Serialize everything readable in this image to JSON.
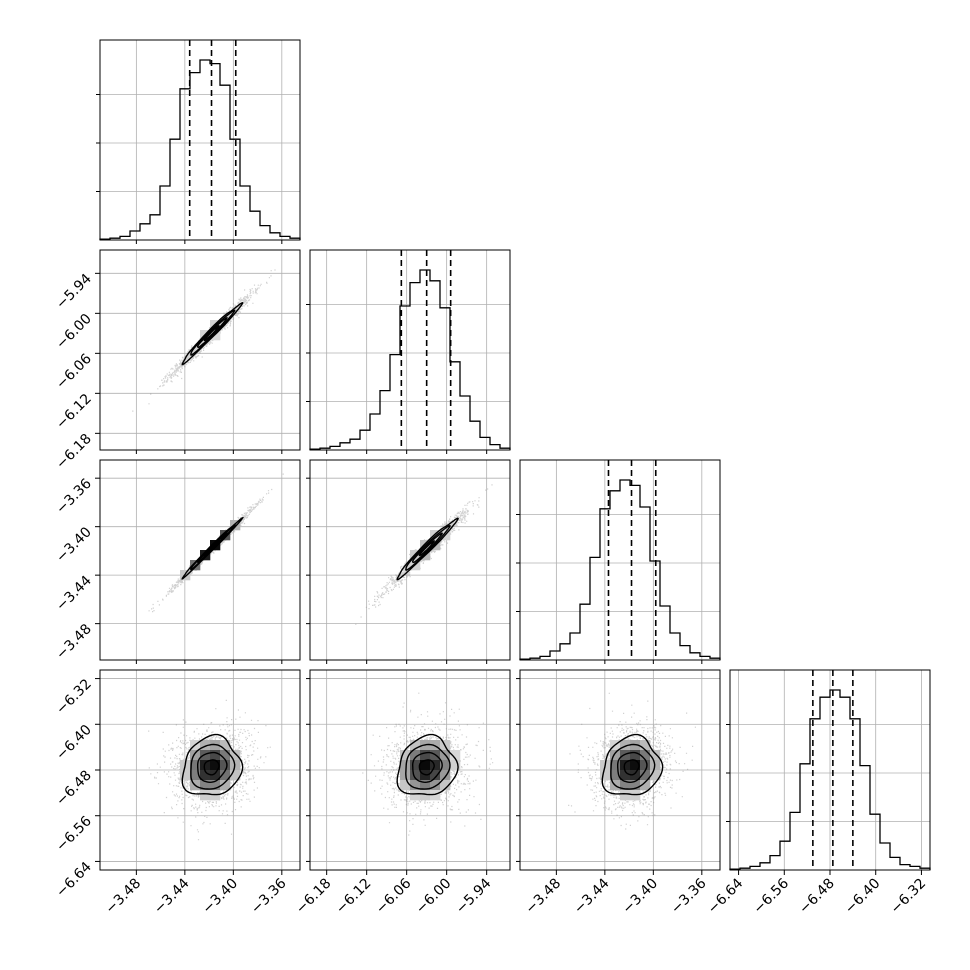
{
  "chart_data": {
    "type": "corner",
    "title": "",
    "grid": true,
    "colors": {
      "line": "#000000",
      "grid": "#b0b0b0",
      "scatter": "#9a9a9a"
    },
    "parameters": [
      {
        "index": 0,
        "range": [
          -3.51,
          -3.345
        ],
        "ticks": [
          -3.48,
          -3.44,
          -3.4,
          -3.36
        ],
        "tick_labels": [
          "−3.48",
          "−3.44",
          "−3.40",
          "−3.36"
        ],
        "quantiles": [
          -3.436,
          -3.418,
          -3.398
        ],
        "histogram": [
          0.5,
          1,
          2,
          5,
          9,
          14,
          30,
          56,
          84,
          93,
          100,
          98,
          86,
          56,
          30,
          16,
          8,
          4,
          2,
          1
        ]
      },
      {
        "index": 1,
        "range": [
          -6.205,
          -5.905
        ],
        "ticks": [
          -6.18,
          -6.12,
          -6.06,
          -6.0,
          -5.94
        ],
        "tick_labels": [
          "−6.18",
          "−6.12",
          "−6.06",
          "−6.00",
          "−5.94"
        ],
        "quantiles": [
          -6.068,
          -6.03,
          -5.994
        ],
        "histogram": [
          0.5,
          1,
          2,
          4,
          6,
          11,
          20,
          33,
          53,
          80,
          93,
          100,
          94,
          79,
          49,
          30,
          16,
          7,
          3,
          1
        ]
      },
      {
        "index": 2,
        "range": [
          -3.51,
          -3.345
        ],
        "ticks": [
          -3.48,
          -3.44,
          -3.4,
          -3.36
        ],
        "tick_labels": [
          "−3.48",
          "−3.44",
          "−3.40",
          "−3.36"
        ],
        "quantiles": [
          -3.437,
          -3.418,
          -3.398
        ],
        "histogram": [
          0.5,
          1,
          2,
          5,
          9,
          15,
          31,
          57,
          84,
          94,
          100,
          97,
          85,
          55,
          30,
          15,
          8,
          4,
          2,
          1
        ]
      },
      {
        "index": 3,
        "range": [
          -6.655,
          -6.305
        ],
        "ticks": [
          -6.64,
          -6.56,
          -6.48,
          -6.4,
          -6.32
        ],
        "tick_labels": [
          "−6.64",
          "−6.56",
          "−6.48",
          "−6.40",
          "−6.32"
        ],
        "quantiles": [
          -6.51,
          -6.475,
          -6.44
        ],
        "histogram": [
          0.5,
          1,
          2,
          4,
          8,
          16,
          32,
          59,
          84,
          96,
          100,
          96,
          84,
          58,
          31,
          15,
          7,
          3,
          2,
          1
        ]
      }
    ],
    "pairs": [
      {
        "x_param": 0,
        "y_param": 1,
        "center": [
          -3.418,
          -6.03
        ],
        "sigma": [
          0.012,
          0.022
        ],
        "correlation": 0.985
      },
      {
        "x_param": 0,
        "y_param": 2,
        "center": [
          -3.418,
          -3.418
        ],
        "sigma": [
          0.012,
          0.012
        ],
        "correlation": 0.995
      },
      {
        "x_param": 1,
        "y_param": 2,
        "center": [
          -6.03,
          -3.418
        ],
        "sigma": [
          0.022,
          0.012
        ],
        "correlation": 0.98
      },
      {
        "x_param": 0,
        "y_param": 3,
        "center": [
          -3.418,
          -6.475
        ],
        "sigma": [
          0.012,
          0.026
        ],
        "correlation": 0.1
      },
      {
        "x_param": 1,
        "y_param": 3,
        "center": [
          -6.03,
          -6.475
        ],
        "sigma": [
          0.022,
          0.026
        ],
        "correlation": 0.1
      },
      {
        "x_param": 2,
        "y_param": 3,
        "center": [
          -3.418,
          -6.475
        ],
        "sigma": [
          0.012,
          0.026
        ],
        "correlation": 0.1
      }
    ],
    "contour_levels_sigma": [
      0.5,
      1.0,
      1.5,
      2.0
    ]
  }
}
